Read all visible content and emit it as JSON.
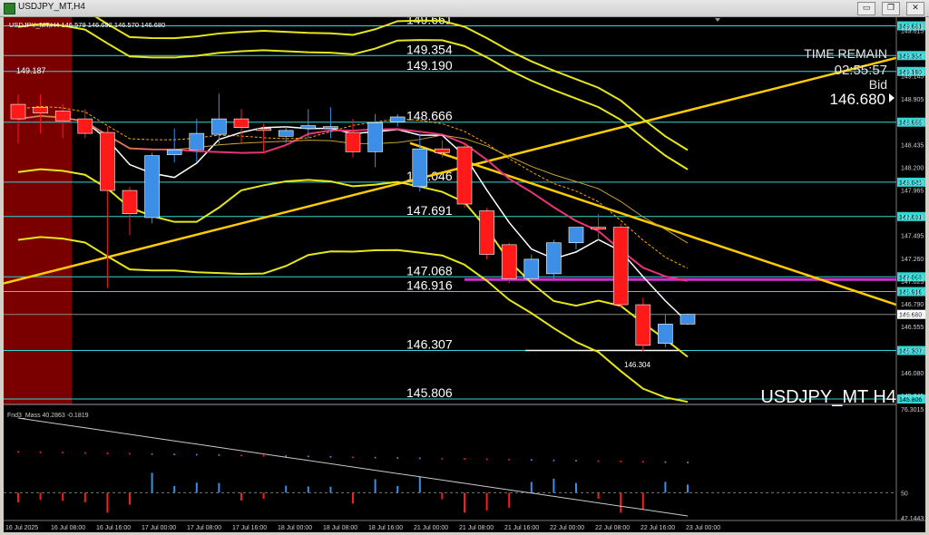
{
  "window": {
    "title": "USDJPY_MT,H4",
    "buttons": [
      "▭",
      "❐",
      "✕"
    ]
  },
  "info": {
    "header": "USDJPY_MT,H4  146.579 146.692 146.570 146.680",
    "time_remain_label": "TIME REMAIN",
    "time_remain_value": "02:55:57",
    "bid_label": "Bid",
    "bid_value": "146.680",
    "symbol_watermark": "USDJPY_MT H4",
    "prev_high_label": "149.187",
    "recent_low_label": "146.304",
    "indicator_label": "Fnd3_Mass 40.2863 -0.1819"
  },
  "colors": {
    "background": "#000000",
    "bull": "#3d8ee6",
    "bear": "#ff1a1a",
    "level_line": "#34d6d6",
    "trendline": "#ffcc00",
    "band": "#e6e61a",
    "magenta_level": "#cc33cc",
    "ma_fast": "#ffffff",
    "ma_pink": "#e6337a",
    "ma_dashed": "#ffa500",
    "ma_thin": "#c8a03c",
    "highlight_zone": "#7a0000"
  },
  "chart_data": {
    "type": "candlestick",
    "symbol": "USDJPY_MT",
    "timeframe": "H4",
    "ylim": [
      145.75,
      149.75
    ],
    "price_axis_ticks": [
      "149.661",
      "149.615",
      "149.354",
      "149.190",
      "149.145",
      "148.905",
      "148.666",
      "148.435",
      "148.200",
      "148.046",
      "147.965",
      "147.691",
      "147.495",
      "147.260",
      "147.068",
      "147.025",
      "146.916",
      "146.790",
      "146.680",
      "146.555",
      "146.307",
      "146.080",
      "145.845"
    ],
    "time_axis_labels": [
      "16 Jul 2025",
      "16 Jul 08:00",
      "16 Jul 16:00",
      "17 Jul 00:00",
      "17 Jul 08:00",
      "17 Jul 16:00",
      "18 Jul 00:00",
      "18 Jul 08:00",
      "18 Jul 16:00",
      "21 Jul 00:00",
      "21 Jul 08:00",
      "21 Jul 16:00",
      "22 Jul 00:00",
      "22 Jul 08:00",
      "22 Jul 16:00",
      "23 Jul 00:00"
    ],
    "candles": [
      {
        "o": 148.85,
        "h": 148.95,
        "c": 148.7,
        "l": 148.45
      },
      {
        "o": 148.82,
        "h": 148.95,
        "c": 148.76,
        "l": 148.55
      },
      {
        "o": 148.78,
        "h": 148.85,
        "c": 148.68,
        "l": 148.5
      },
      {
        "o": 148.7,
        "h": 148.8,
        "c": 148.55,
        "l": 148.5
      },
      {
        "o": 148.56,
        "h": 148.62,
        "c": 147.96,
        "l": 146.95
      },
      {
        "o": 147.96,
        "h": 148.0,
        "c": 147.72,
        "l": 147.5
      },
      {
        "o": 147.68,
        "h": 148.35,
        "c": 148.32,
        "l": 147.62
      },
      {
        "o": 148.33,
        "h": 148.6,
        "c": 148.38,
        "l": 148.25
      },
      {
        "o": 148.38,
        "h": 148.7,
        "c": 148.55,
        "l": 148.25
      },
      {
        "o": 148.54,
        "h": 148.96,
        "c": 148.7,
        "l": 148.44
      },
      {
        "o": 148.7,
        "h": 148.8,
        "c": 148.61,
        "l": 148.45
      },
      {
        "o": 148.6,
        "h": 148.65,
        "c": 148.58,
        "l": 148.35
      },
      {
        "o": 148.52,
        "h": 148.62,
        "c": 148.58,
        "l": 148.45
      },
      {
        "o": 148.6,
        "h": 148.8,
        "c": 148.63,
        "l": 148.5
      },
      {
        "o": 148.6,
        "h": 148.82,
        "c": 148.62,
        "l": 148.5
      },
      {
        "o": 148.56,
        "h": 148.7,
        "c": 148.36,
        "l": 148.3
      },
      {
        "o": 148.36,
        "h": 148.75,
        "c": 148.66,
        "l": 148.2
      },
      {
        "o": 148.67,
        "h": 148.75,
        "c": 148.72,
        "l": 148.62
      },
      {
        "o": 148.0,
        "h": 148.55,
        "c": 148.39,
        "l": 147.95
      },
      {
        "o": 148.39,
        "h": 148.48,
        "c": 148.35,
        "l": 148.3
      },
      {
        "o": 148.41,
        "h": 148.45,
        "c": 147.82,
        "l": 147.78
      },
      {
        "o": 147.75,
        "h": 147.78,
        "c": 147.3,
        "l": 147.25
      },
      {
        "o": 147.4,
        "h": 147.42,
        "c": 147.05,
        "l": 147.0
      },
      {
        "o": 147.05,
        "h": 147.3,
        "c": 147.25,
        "l": 147.02
      },
      {
        "o": 147.1,
        "h": 147.45,
        "c": 147.42,
        "l": 147.05
      },
      {
        "o": 147.42,
        "h": 147.58,
        "c": 147.58,
        "l": 147.35
      },
      {
        "o": 147.58,
        "h": 147.72,
        "c": 147.56,
        "l": 147.45
      },
      {
        "o": 147.58,
        "h": 147.62,
        "c": 146.78,
        "l": 146.75
      },
      {
        "o": 146.78,
        "h": 146.85,
        "c": 146.36,
        "l": 146.3
      },
      {
        "o": 146.38,
        "h": 146.68,
        "c": 146.58,
        "l": 146.34
      },
      {
        "o": 146.58,
        "h": 146.69,
        "c": 146.68,
        "l": 146.57
      }
    ],
    "horizontal_levels": [
      {
        "price": 149.661,
        "label": "149.661"
      },
      {
        "price": 149.354,
        "label": "149.354"
      },
      {
        "price": 149.19,
        "label": "149.190"
      },
      {
        "price": 148.666,
        "label": "148.666"
      },
      {
        "price": 148.046,
        "label": "148.046"
      },
      {
        "price": 147.691,
        "label": "147.691"
      },
      {
        "price": 147.068,
        "label": "147.068"
      },
      {
        "price": 146.916,
        "label": "146.916"
      },
      {
        "price": 146.307,
        "label": "146.307"
      },
      {
        "price": 145.806,
        "label": "145.806"
      }
    ],
    "current_price": 146.68,
    "indicator": {
      "name": "Fnd3_Mass",
      "value": 40.2863,
      "change": -0.1819,
      "ylim": [
        42.1443,
        76.3015
      ],
      "axis_ticks": [
        "76.3015",
        "50",
        "42.1443"
      ],
      "reference_level": 50
    }
  }
}
